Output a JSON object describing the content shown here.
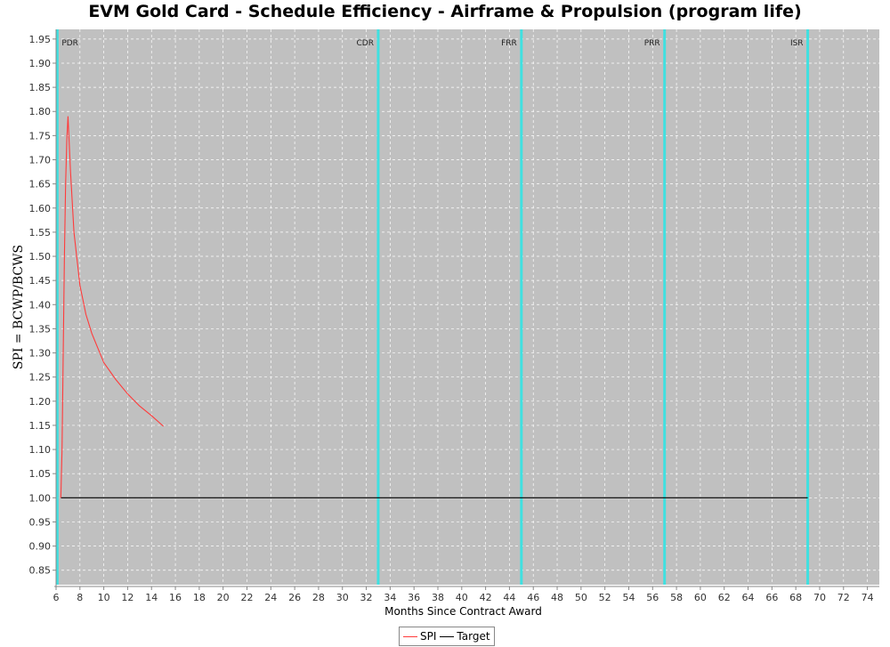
{
  "chart_data": {
    "type": "line",
    "title": "EVM Gold Card - Schedule Efficiency - Airframe & Propulsion (program life)",
    "xlabel": "Months Since Contract Award",
    "ylabel": "SPI = BCWP/BCWS",
    "xlim": [
      6,
      75
    ],
    "ylim": [
      0.82,
      1.97
    ],
    "x_ticks": [
      6,
      8,
      10,
      12,
      14,
      16,
      18,
      20,
      22,
      24,
      26,
      28,
      30,
      32,
      34,
      36,
      38,
      40,
      42,
      44,
      46,
      48,
      50,
      52,
      54,
      56,
      58,
      60,
      62,
      64,
      66,
      68,
      70,
      72,
      74
    ],
    "y_ticks": [
      "0.85",
      "0.90",
      "0.95",
      "1.00",
      "1.05",
      "1.10",
      "1.15",
      "1.20",
      "1.25",
      "1.30",
      "1.35",
      "1.40",
      "1.45",
      "1.50",
      "1.55",
      "1.60",
      "1.65",
      "1.70",
      "1.75",
      "1.80",
      "1.85",
      "1.90",
      "1.95"
    ],
    "grid": true,
    "legend_position": "bottom-center",
    "series": [
      {
        "name": "SPI",
        "color": "#ff3b3b",
        "points": [
          [
            6.4,
            1.0
          ],
          [
            6.5,
            1.1
          ],
          [
            6.6,
            1.3
          ],
          [
            6.7,
            1.5
          ],
          [
            6.8,
            1.65
          ],
          [
            6.9,
            1.74
          ],
          [
            7.0,
            1.79
          ],
          [
            7.2,
            1.68
          ],
          [
            7.5,
            1.55
          ],
          [
            8.0,
            1.44
          ],
          [
            8.5,
            1.38
          ],
          [
            9.0,
            1.34
          ],
          [
            10.0,
            1.28
          ],
          [
            11.0,
            1.245
          ],
          [
            12.0,
            1.215
          ],
          [
            13.0,
            1.19
          ],
          [
            14.0,
            1.17
          ],
          [
            15.0,
            1.148
          ]
        ]
      },
      {
        "name": "Target",
        "color": "#000000",
        "points": [
          [
            6.4,
            1.0
          ],
          [
            69.0,
            1.0
          ]
        ]
      }
    ],
    "milestones": [
      {
        "label": "PDR",
        "x": 6.1
      },
      {
        "label": "CDR",
        "x": 33.0
      },
      {
        "label": "FRR",
        "x": 45.0
      },
      {
        "label": "PRR",
        "x": 57.0
      },
      {
        "label": "ISR",
        "x": 69.0
      }
    ],
    "colors": {
      "plot_background": "#c0c0c0",
      "grid": "#ffffff",
      "milestone": "#40e0e0"
    }
  }
}
